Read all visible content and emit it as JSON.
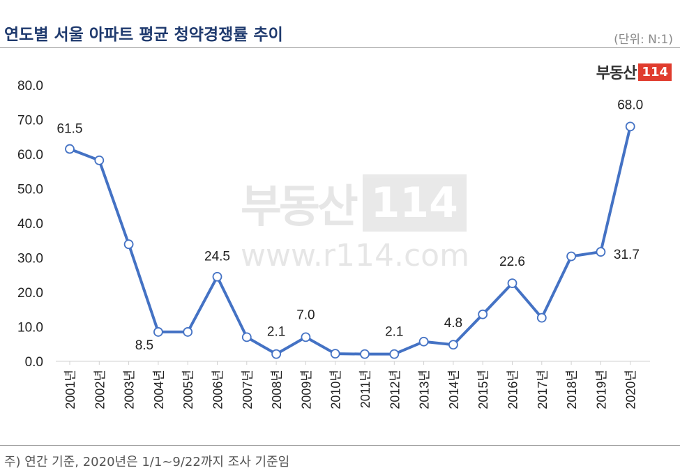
{
  "header": {
    "title": "연도별 서울 아파트 평균 청약경쟁률 추이",
    "unit": "(단위: N:1)"
  },
  "logo": {
    "text": "부동산",
    "box": "114"
  },
  "watermark": {
    "text": "부동산",
    "box": "114",
    "url": "www.r114.com"
  },
  "footnote": "주) 연간 기준, 2020년은 1/1~9/22까지 조사 기준임",
  "colors": {
    "line": "#4472c4",
    "title": "#1f3a6e",
    "logo_red": "#e03c2e"
  },
  "chart_data": {
    "type": "line",
    "title": "연도별 서울 아파트 평균 청약경쟁률 추이",
    "xlabel": "",
    "ylabel": "",
    "categories": [
      "2001년",
      "2002년",
      "2003년",
      "2004년",
      "2005년",
      "2006년",
      "2007년",
      "2008년",
      "2009년",
      "2010년",
      "2011년",
      "2012년",
      "2013년",
      "2014년",
      "2015년",
      "2016년",
      "2017년",
      "2018년",
      "2019년",
      "2020년"
    ],
    "series": [
      {
        "values": [
          61.5,
          58.2,
          33.9,
          8.5,
          8.5,
          24.5,
          7.0,
          2.1,
          7.0,
          2.2,
          2.1,
          2.1,
          5.7,
          4.8,
          13.6,
          22.6,
          12.6,
          30.4,
          31.7,
          68.0
        ]
      }
    ],
    "data_labels": [
      {
        "index": 0,
        "text": "61.5"
      },
      {
        "index": 3,
        "text": "8.5"
      },
      {
        "index": 5,
        "text": "24.5"
      },
      {
        "index": 7,
        "text": "2.1"
      },
      {
        "index": 8,
        "text": "7.0"
      },
      {
        "index": 11,
        "text": "2.1"
      },
      {
        "index": 13,
        "text": "4.8"
      },
      {
        "index": 15,
        "text": "22.6"
      },
      {
        "index": 18,
        "text": "31.7"
      },
      {
        "index": 19,
        "text": "68.0"
      }
    ],
    "yticks": [
      "0.0",
      "10.0",
      "20.0",
      "30.0",
      "40.0",
      "50.0",
      "60.0",
      "70.0",
      "80.0"
    ],
    "ylim": [
      0,
      80
    ],
    "grid": false,
    "legend": "none"
  }
}
